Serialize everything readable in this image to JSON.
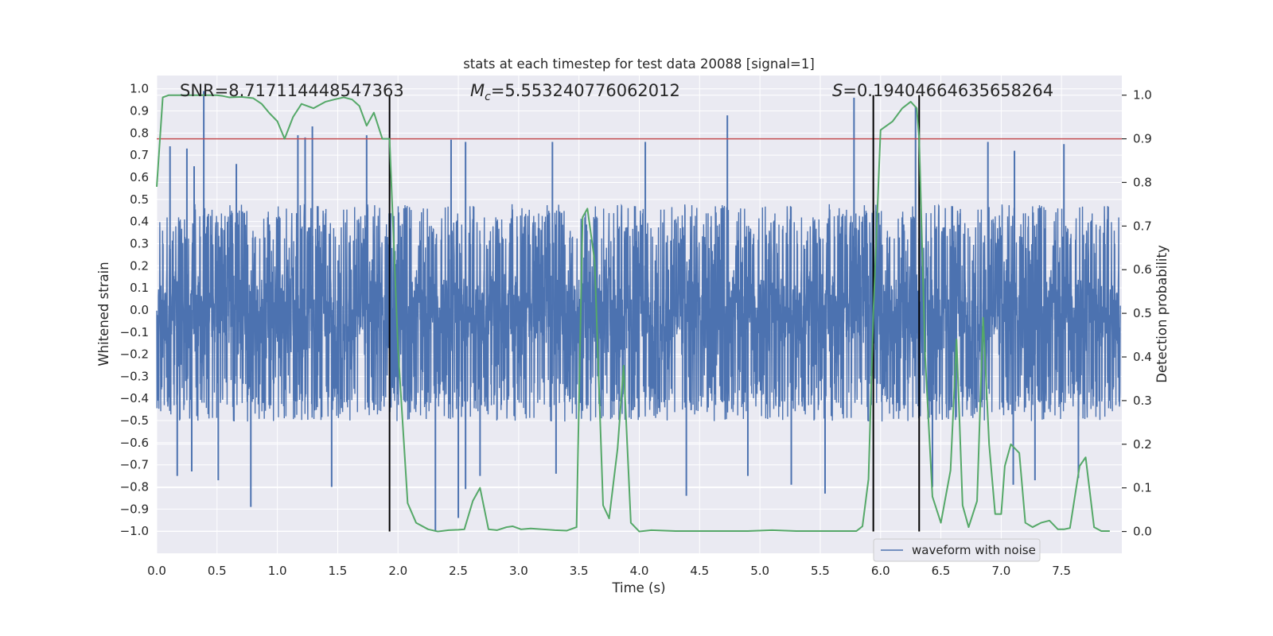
{
  "chart_data": {
    "type": "line",
    "title": "stats at each timestep for test data 20088 [signal=1]",
    "xlabel": "Time (s)",
    "ylabel": "Whitened strain",
    "ylabel_right": "Detection probability",
    "xlim": [
      0.0,
      8.0
    ],
    "ylim": [
      -1.1,
      1.06
    ],
    "ylim_right": [
      -0.05,
      1.045
    ],
    "x_ticks": [
      0.0,
      0.5,
      1.0,
      1.5,
      2.0,
      2.5,
      3.0,
      3.5,
      4.0,
      4.5,
      5.0,
      5.5,
      6.0,
      6.5,
      7.0,
      7.5
    ],
    "x_tick_labels": [
      "0.0",
      "0.5",
      "1.0",
      "1.5",
      "2.0",
      "2.5",
      "3.0",
      "3.5",
      "4.0",
      "4.5",
      "5.0",
      "5.5",
      "6.0",
      "6.5",
      "7.0",
      "7.5"
    ],
    "y_ticks": [
      -1.0,
      -0.9,
      -0.8,
      -0.7,
      -0.6,
      -0.5,
      -0.4,
      -0.3,
      -0.2,
      -0.1,
      0.0,
      0.1,
      0.2,
      0.3,
      0.4,
      0.5,
      0.6,
      0.7,
      0.8,
      0.9,
      1.0
    ],
    "y_tick_labels": [
      "−1.0",
      "−0.9",
      "−0.8",
      "−0.7",
      "−0.6",
      "−0.5",
      "−0.4",
      "−0.3",
      "−0.2",
      "−0.1",
      "0.0",
      "0.1",
      "0.2",
      "0.3",
      "0.4",
      "0.5",
      "0.6",
      "0.7",
      "0.8",
      "0.9",
      "1.0"
    ],
    "y_right_ticks": [
      0.0,
      0.1,
      0.2,
      0.3,
      0.4,
      0.5,
      0.6,
      0.7,
      0.8,
      0.9,
      1.0
    ],
    "y_right_tick_labels": [
      "0.0",
      "0.1",
      "0.2",
      "0.3",
      "0.4",
      "0.5",
      "0.6",
      "0.7",
      "0.8",
      "0.9",
      "1.0"
    ],
    "annotations": {
      "snr": "SNR=8.717114448547363",
      "mc_symbol": "M",
      "mc_subscript": "c",
      "mc_value": "=5.553240776062012",
      "s_symbol": "S",
      "s_value": "=0.19404664635658264"
    },
    "legend": {
      "label": "waveform with noise",
      "location": "lower-right"
    },
    "threshold_right": 0.9,
    "vertical_lines_x": [
      1.93,
      5.94,
      6.32
    ],
    "waveform": {
      "name": "waveform with noise",
      "samples": 4096,
      "typical_envelope": [
        -0.42,
        0.4
      ],
      "peaks": [
        {
          "t": 0.39,
          "y": 0.99
        },
        {
          "t": 0.11,
          "y": 0.74
        },
        {
          "t": 0.25,
          "y": 0.73
        },
        {
          "t": 0.31,
          "y": 0.65
        },
        {
          "t": 0.66,
          "y": 0.66
        },
        {
          "t": 1.17,
          "y": 0.79
        },
        {
          "t": 1.23,
          "y": 0.78
        },
        {
          "t": 1.29,
          "y": 0.83
        },
        {
          "t": 1.74,
          "y": 0.79
        },
        {
          "t": 4.73,
          "y": 0.88
        },
        {
          "t": 5.78,
          "y": 0.96
        },
        {
          "t": 6.29,
          "y": 0.92
        },
        {
          "t": 2.44,
          "y": 0.77
        },
        {
          "t": 2.56,
          "y": 0.76
        },
        {
          "t": 3.28,
          "y": 0.76
        },
        {
          "t": 4.05,
          "y": 0.76
        },
        {
          "t": 6.89,
          "y": 0.76
        },
        {
          "t": 7.52,
          "y": 0.75
        },
        {
          "t": 7.11,
          "y": 0.72
        },
        {
          "t": 0.78,
          "y": -0.89
        },
        {
          "t": 2.31,
          "y": -1.0
        },
        {
          "t": 2.5,
          "y": -0.94
        },
        {
          "t": 1.45,
          "y": -0.8
        },
        {
          "t": 2.56,
          "y": -0.81
        },
        {
          "t": 4.39,
          "y": -0.84
        },
        {
          "t": 5.54,
          "y": -0.83
        },
        {
          "t": 5.26,
          "y": -0.79
        },
        {
          "t": 0.51,
          "y": -0.77
        },
        {
          "t": 0.17,
          "y": -0.75
        },
        {
          "t": 0.29,
          "y": -0.73
        },
        {
          "t": 4.9,
          "y": -0.75
        },
        {
          "t": 6.43,
          "y": -0.8
        },
        {
          "t": 7.1,
          "y": -0.79
        },
        {
          "t": 7.28,
          "y": -0.77
        },
        {
          "t": 7.64,
          "y": -0.76
        },
        {
          "t": 2.68,
          "y": -0.75
        },
        {
          "t": 3.31,
          "y": -0.74
        }
      ]
    },
    "detection_probability": {
      "name": "detection probability",
      "x": [
        0.0,
        0.05,
        0.1,
        0.2,
        0.3,
        0.4,
        0.5,
        0.55,
        0.6,
        0.7,
        0.8,
        0.87,
        0.93,
        1.0,
        1.06,
        1.13,
        1.2,
        1.3,
        1.4,
        1.47,
        1.55,
        1.62,
        1.68,
        1.74,
        1.8,
        1.87,
        1.93,
        2.0,
        2.08,
        2.15,
        2.25,
        2.33,
        2.42,
        2.5,
        2.55,
        2.62,
        2.68,
        2.75,
        2.82,
        2.9,
        2.95,
        3.02,
        3.1,
        3.2,
        3.3,
        3.4,
        3.48,
        3.53,
        3.57,
        3.63,
        3.7,
        3.75,
        3.82,
        3.87,
        3.93,
        4.0,
        4.1,
        4.3,
        4.6,
        4.9,
        5.1,
        5.3,
        5.6,
        5.8,
        5.85,
        5.9,
        5.94,
        6.0,
        6.1,
        6.18,
        6.25,
        6.3,
        6.32,
        6.37,
        6.43,
        6.5,
        6.58,
        6.63,
        6.68,
        6.73,
        6.8,
        6.85,
        6.9,
        6.95,
        7.0,
        7.03,
        7.08,
        7.15,
        7.2,
        7.26,
        7.33,
        7.4,
        7.47,
        7.52,
        7.57,
        7.65,
        7.7,
        7.77,
        7.83,
        7.9
      ],
      "y": [
        0.79,
        0.995,
        1.0,
        1.0,
        1.0,
        1.0,
        1.0,
        0.998,
        0.995,
        0.996,
        0.993,
        0.98,
        0.96,
        0.94,
        0.9,
        0.95,
        0.98,
        0.97,
        0.985,
        0.99,
        0.995,
        0.99,
        0.975,
        0.93,
        0.96,
        0.9,
        0.9,
        0.42,
        0.065,
        0.02,
        0.005,
        0.0,
        0.003,
        0.004,
        0.005,
        0.07,
        0.1,
        0.005,
        0.003,
        0.01,
        0.012,
        0.005,
        0.007,
        0.005,
        0.003,
        0.002,
        0.01,
        0.72,
        0.74,
        0.62,
        0.06,
        0.03,
        0.19,
        0.38,
        0.02,
        0.0,
        0.003,
        0.001,
        0.001,
        0.001,
        0.003,
        0.001,
        0.001,
        0.001,
        0.012,
        0.12,
        0.5,
        0.92,
        0.94,
        0.97,
        0.985,
        0.97,
        0.9,
        0.4,
        0.08,
        0.02,
        0.14,
        0.44,
        0.06,
        0.01,
        0.07,
        0.49,
        0.2,
        0.04,
        0.04,
        0.15,
        0.2,
        0.18,
        0.02,
        0.01,
        0.02,
        0.025,
        0.005,
        0.005,
        0.008,
        0.15,
        0.17,
        0.01,
        0.001,
        0.001
      ]
    },
    "colors": {
      "background": "#eaeaf2",
      "grid": "#ffffff",
      "waveform": "#4c72b0",
      "probability": "#55a868",
      "threshold": "#c44e52",
      "vline": "#000000",
      "text": "#262626"
    }
  }
}
